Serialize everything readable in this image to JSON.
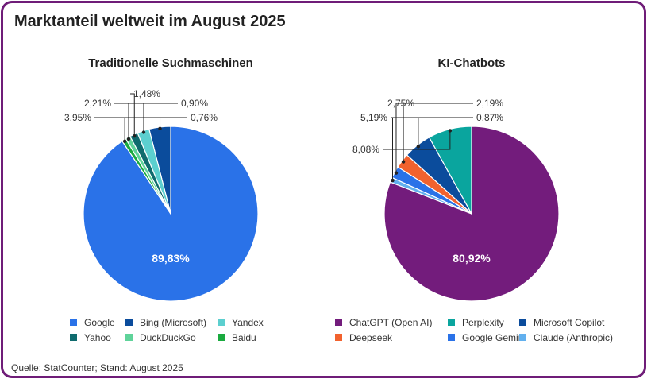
{
  "title": "Marktanteil weltweit im August 2025",
  "source": "Quelle: StatCounter; Stand: August 2025",
  "chart_data": [
    {
      "type": "pie",
      "title": "Traditionelle Suchmaschinen",
      "slices": [
        {
          "name": "Google",
          "value": 89.83,
          "label": "89,83%",
          "color": "#2a72e8"
        },
        {
          "name": "Bing (Microsoft)",
          "value": 3.95,
          "label": "3,95%",
          "color": "#0b4c9c"
        },
        {
          "name": "Yandex",
          "value": 2.21,
          "label": "2,21%",
          "color": "#5ccfcf"
        },
        {
          "name": "Yahoo",
          "value": 1.48,
          "label": "1,48%",
          "color": "#0f6b6e"
        },
        {
          "name": "DuckDuckGo",
          "value": 0.9,
          "label": "0,90%",
          "color": "#5fd39a"
        },
        {
          "name": "Baidu",
          "value": 0.76,
          "label": "0,76%",
          "color": "#1aaa3f"
        }
      ]
    },
    {
      "type": "pie",
      "title": "KI-Chatbots",
      "slices": [
        {
          "name": "ChatGPT (Open AI)",
          "value": 80.92,
          "label": "80,92%",
          "color": "#731c7c"
        },
        {
          "name": "Perplexity",
          "value": 8.08,
          "label": "8,08%",
          "color": "#0aa59e"
        },
        {
          "name": "Microsoft Copilot",
          "value": 5.19,
          "label": "5,19%",
          "color": "#0b4c9c"
        },
        {
          "name": "Deepseek",
          "value": 2.75,
          "label": "2,75%",
          "color": "#f2622e"
        },
        {
          "name": "Google Gemini",
          "value": 2.19,
          "label": "2,19%",
          "color": "#2a72e8"
        },
        {
          "name": "Claude (Anthropic)",
          "value": 0.87,
          "label": "0,87%",
          "color": "#62b0ee"
        }
      ]
    }
  ]
}
